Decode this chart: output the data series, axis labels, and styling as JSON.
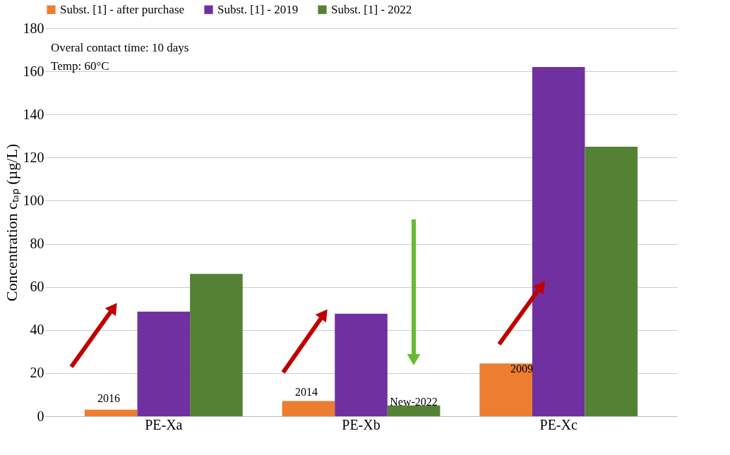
{
  "chart_data": {
    "type": "bar",
    "ylabel": "Concentration cₜₐₚ (µg/L)",
    "categories": [
      "PE-Xa",
      "PE-Xb",
      "PE-Xc"
    ],
    "series": [
      {
        "name": "Subst. [1] - after purchase",
        "color": "#ed7d31",
        "values": [
          3,
          7,
          24.5
        ]
      },
      {
        "name": "Subst. [1] - 2019",
        "color": "#7030a0",
        "values": [
          48.5,
          47.5,
          162
        ]
      },
      {
        "name": "Subst. [1] - 2022",
        "color": "#548235",
        "values": [
          66,
          5,
          125
        ]
      }
    ],
    "ylim": [
      0,
      180
    ],
    "yticks": [
      0,
      20,
      40,
      60,
      80,
      100,
      120,
      140,
      160,
      180
    ],
    "grid": "y",
    "legend": "top",
    "annotations": [
      "Overal contact time: 10 days",
      "Temp: 60°C",
      "2016",
      "2014",
      "New-2022",
      "2009"
    ]
  }
}
